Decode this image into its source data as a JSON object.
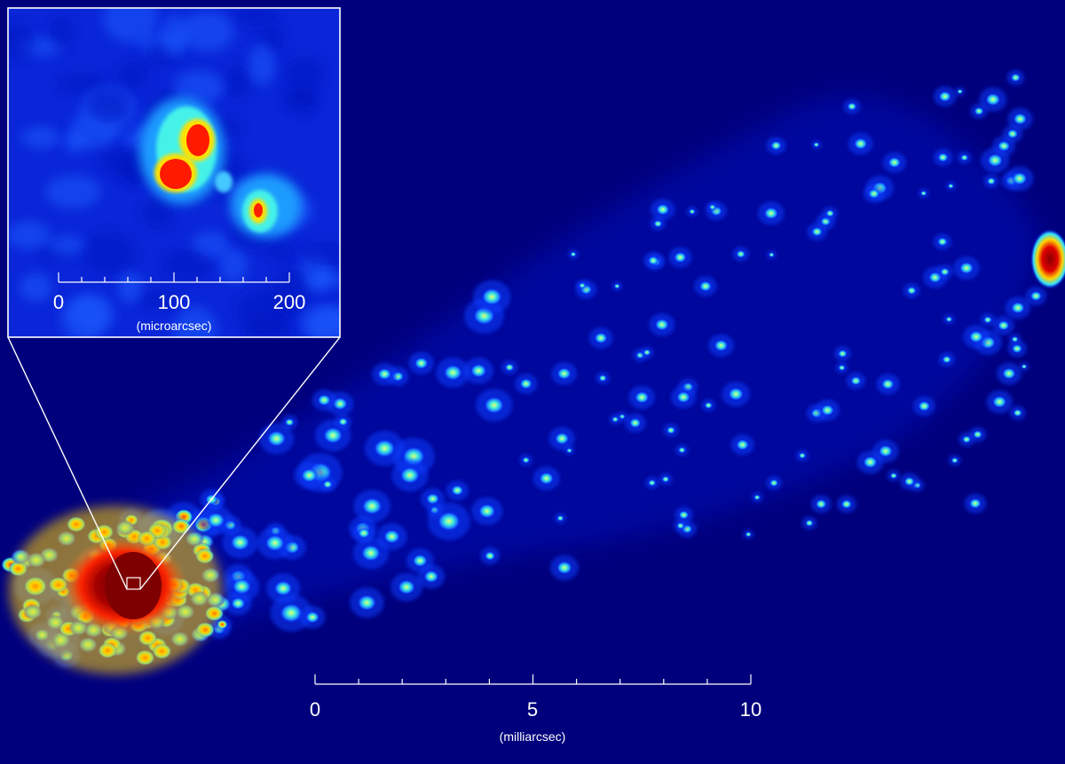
{
  "main_scale": {
    "tick_labels": [
      "0",
      "5",
      "10"
    ],
    "unit_label": "(milliarcsec)"
  },
  "inset": {
    "tick_labels": [
      "0",
      "100",
      "200"
    ],
    "unit_label": "(microarcsec)"
  },
  "colors": {
    "background": "#00007d",
    "jet_low": "#0010ff",
    "jet_mid": "#33d1ff",
    "jet_high": "#ffee00",
    "jet_peak": "#ff2a00",
    "core": "#7f0000",
    "scale_lines": "#ffffff"
  }
}
